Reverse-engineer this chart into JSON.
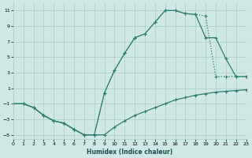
{
  "xlabel": "Humidex (Indice chaleur)",
  "xlim": [
    0,
    23
  ],
  "ylim": [
    -5.5,
    12
  ],
  "xticks": [
    0,
    1,
    2,
    3,
    4,
    5,
    6,
    7,
    8,
    9,
    10,
    11,
    12,
    13,
    14,
    15,
    16,
    17,
    18,
    19,
    20,
    21,
    22,
    23
  ],
  "yticks": [
    -5,
    -3,
    -1,
    1,
    3,
    5,
    7,
    9,
    11
  ],
  "bg_color": "#cde8e5",
  "grid_color": "#aaccca",
  "line_color": "#2d7d6e",
  "line1_x": [
    0,
    1,
    2,
    3,
    4,
    5,
    6,
    7,
    8,
    9,
    10,
    11,
    12,
    13,
    14,
    15,
    16,
    17,
    18,
    19,
    20,
    21,
    22,
    23
  ],
  "line1_y": [
    -1,
    -1,
    -1.5,
    -2.5,
    -3.2,
    -3.5,
    -4.3,
    -5.0,
    -5.0,
    -5.0,
    -4.0,
    -3.2,
    -2.5,
    -2.0,
    -1.5,
    -1.0,
    -0.5,
    -0.2,
    0.1,
    0.3,
    0.5,
    0.6,
    0.7,
    0.8
  ],
  "line2_x": [
    0,
    1,
    2,
    3,
    4,
    5,
    6,
    7,
    8,
    9,
    10,
    11,
    12,
    13,
    14,
    15,
    16,
    17,
    18,
    19,
    20,
    21,
    22,
    23
  ],
  "line2_y": [
    -1,
    -1,
    -1.5,
    -2.5,
    -3.2,
    -3.5,
    -4.3,
    -5.0,
    -5.0,
    0.4,
    3.3,
    5.5,
    7.5,
    8.0,
    9.5,
    11.0,
    11.0,
    10.6,
    10.5,
    10.3,
    2.5,
    2.5,
    2.5,
    2.5
  ],
  "line3_x": [
    0,
    1,
    2,
    3,
    4,
    5,
    6,
    7,
    8,
    9,
    10,
    11,
    12,
    13,
    14,
    15,
    16,
    17,
    18,
    19,
    20,
    21,
    22,
    23
  ],
  "line3_y": [
    -1,
    -1,
    -1.5,
    -2.5,
    -3.2,
    -3.5,
    -4.3,
    -5.0,
    -5.0,
    0.4,
    3.3,
    5.5,
    7.5,
    8.0,
    9.5,
    11.0,
    11.0,
    10.6,
    10.5,
    7.5,
    7.5,
    4.8,
    2.5,
    2.5
  ]
}
